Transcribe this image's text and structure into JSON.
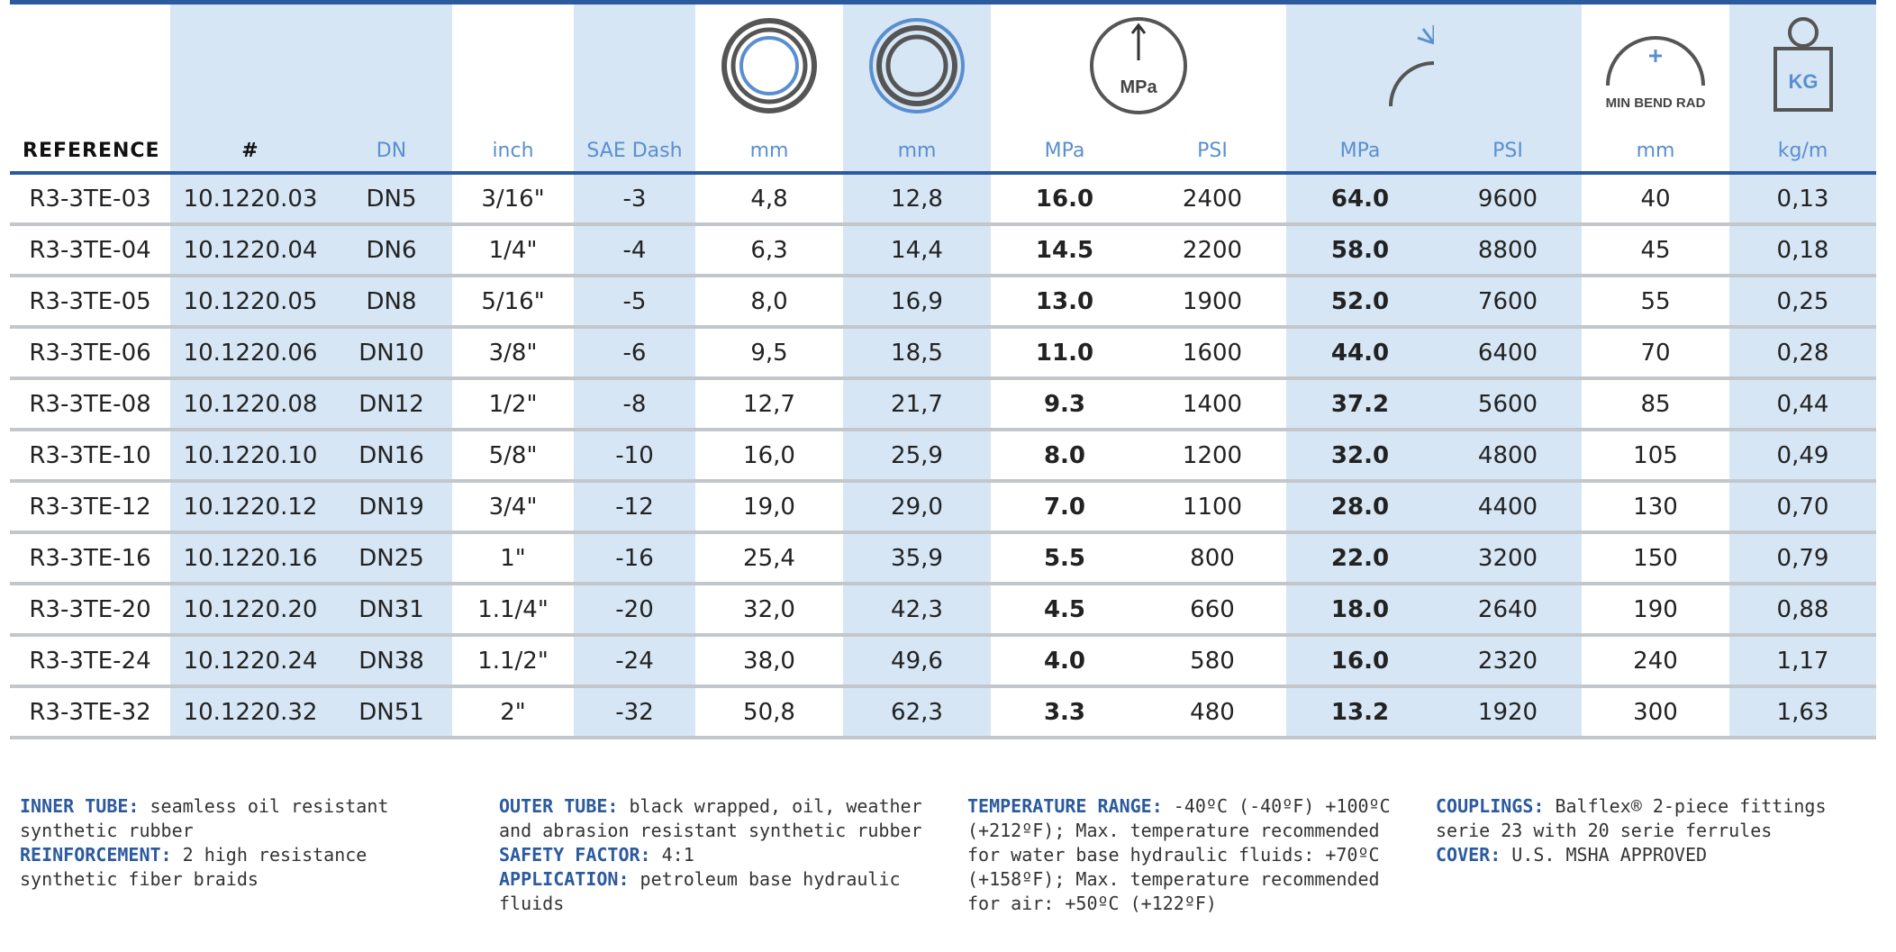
{
  "headers": {
    "reference": "REFERENCE",
    "number": "#",
    "dn": "DN",
    "inch": "inch",
    "sae": "SAE Dash",
    "inner_mm": "mm",
    "outer_mm": "mm",
    "wp_mpa": "MPa",
    "wp_psi": "PSI",
    "bp_mpa": "MPa",
    "bp_psi": "PSI",
    "bend_mm": "mm",
    "weight": "kg/m",
    "icon_pressure_label": "MPa",
    "icon_bend_label": "MIN BEND RAD",
    "icon_weight_label": "KG"
  },
  "rows": [
    {
      "ref": "R3-3TE-03",
      "num": "10.1220.03",
      "dn": "DN5",
      "inch": "3/16\"",
      "sae": "-3",
      "id": "4,8",
      "od": "12,8",
      "wp_mpa": "16.0",
      "wp_psi": "2400",
      "bp_mpa": "64.0",
      "bp_psi": "9600",
      "bend": "40",
      "weight": "0,13"
    },
    {
      "ref": "R3-3TE-04",
      "num": "10.1220.04",
      "dn": "DN6",
      "inch": "1/4\"",
      "sae": "-4",
      "id": "6,3",
      "od": "14,4",
      "wp_mpa": "14.5",
      "wp_psi": "2200",
      "bp_mpa": "58.0",
      "bp_psi": "8800",
      "bend": "45",
      "weight": "0,18"
    },
    {
      "ref": "R3-3TE-05",
      "num": "10.1220.05",
      "dn": "DN8",
      "inch": "5/16\"",
      "sae": "-5",
      "id": "8,0",
      "od": "16,9",
      "wp_mpa": "13.0",
      "wp_psi": "1900",
      "bp_mpa": "52.0",
      "bp_psi": "7600",
      "bend": "55",
      "weight": "0,25"
    },
    {
      "ref": "R3-3TE-06",
      "num": "10.1220.06",
      "dn": "DN10",
      "inch": "3/8\"",
      "sae": "-6",
      "id": "9,5",
      "od": "18,5",
      "wp_mpa": "11.0",
      "wp_psi": "1600",
      "bp_mpa": "44.0",
      "bp_psi": "6400",
      "bend": "70",
      "weight": "0,28"
    },
    {
      "ref": "R3-3TE-08",
      "num": "10.1220.08",
      "dn": "DN12",
      "inch": "1/2\"",
      "sae": "-8",
      "id": "12,7",
      "od": "21,7",
      "wp_mpa": "9.3",
      "wp_psi": "1400",
      "bp_mpa": "37.2",
      "bp_psi": "5600",
      "bend": "85",
      "weight": "0,44"
    },
    {
      "ref": "R3-3TE-10",
      "num": "10.1220.10",
      "dn": "DN16",
      "inch": "5/8\"",
      "sae": "-10",
      "id": "16,0",
      "od": "25,9",
      "wp_mpa": "8.0",
      "wp_psi": "1200",
      "bp_mpa": "32.0",
      "bp_psi": "4800",
      "bend": "105",
      "weight": "0,49"
    },
    {
      "ref": "R3-3TE-12",
      "num": "10.1220.12",
      "dn": "DN19",
      "inch": "3/4\"",
      "sae": "-12",
      "id": "19,0",
      "od": "29,0",
      "wp_mpa": "7.0",
      "wp_psi": "1100",
      "bp_mpa": "28.0",
      "bp_psi": "4400",
      "bend": "130",
      "weight": "0,70"
    },
    {
      "ref": "R3-3TE-16",
      "num": "10.1220.16",
      "dn": "DN25",
      "inch": "1\"",
      "sae": "-16",
      "id": "25,4",
      "od": "35,9",
      "wp_mpa": "5.5",
      "wp_psi": "800",
      "bp_mpa": "22.0",
      "bp_psi": "3200",
      "bend": "150",
      "weight": "0,79"
    },
    {
      "ref": "R3-3TE-20",
      "num": "10.1220.20",
      "dn": "DN31",
      "inch": "1.1/4\"",
      "sae": "-20",
      "id": "32,0",
      "od": "42,3",
      "wp_mpa": "4.5",
      "wp_psi": "660",
      "bp_mpa": "18.0",
      "bp_psi": "2640",
      "bend": "190",
      "weight": "0,88"
    },
    {
      "ref": "R3-3TE-24",
      "num": "10.1220.24",
      "dn": "DN38",
      "inch": "1.1/2\"",
      "sae": "-24",
      "id": "38,0",
      "od": "49,6",
      "wp_mpa": "4.0",
      "wp_psi": "580",
      "bp_mpa": "16.0",
      "bp_psi": "2320",
      "bend": "240",
      "weight": "1,17"
    },
    {
      "ref": "R3-3TE-32",
      "num": "10.1220.32",
      "dn": "DN51",
      "inch": "2\"",
      "sae": "-32",
      "id": "50,8",
      "od": "62,3",
      "wp_mpa": "3.3",
      "wp_psi": "480",
      "bp_mpa": "13.2",
      "bp_psi": "1920",
      "bend": "300",
      "weight": "1,63"
    }
  ],
  "notes": {
    "inner_tube_label": "INNER TUBE:",
    "inner_tube_text": "seamless oil resistant synthetic rubber",
    "reinforcement_label": "REINFORCEMENT:",
    "reinforcement_text": "2 high resistance synthetic fiber braids",
    "outer_tube_label": "OUTER TUBE:",
    "outer_tube_text": "black wrapped, oil, weather and abrasion resistant synthetic rubber",
    "safety_label": "SAFETY FACTOR:",
    "safety_text": "4:1",
    "application_label": "APPLICATION:",
    "application_text": "petroleum base hydraulic fluids",
    "temperature_label": "TEMPERATURE RANGE:",
    "temperature_text": "-40ºC (-40ºF) +100ºC (+212ºF); Max. temperature recommended for water base hydraulic fluids: +70ºC (+158ºF); Max. temperature recommended for air: +50ºC (+122ºF)",
    "couplings_label": "COUPLINGS:",
    "couplings_text": "Balflex® 2-piece fittings serie 23 with 20 serie ferrules",
    "cover_label": "COVER:",
    "cover_text": "U.S. MSHA APPROVED"
  },
  "colors": {
    "accent": "#2b5a9e",
    "header_label_blue": "#5a8fcf",
    "shaded_column": "#d6e6f5",
    "row_divider": "#c3c7cc"
  },
  "icons": [
    "inner-diameter-icon",
    "outer-diameter-icon",
    "working-pressure-icon",
    "burst-pressure-icon",
    "bend-radius-icon",
    "weight-icon"
  ]
}
